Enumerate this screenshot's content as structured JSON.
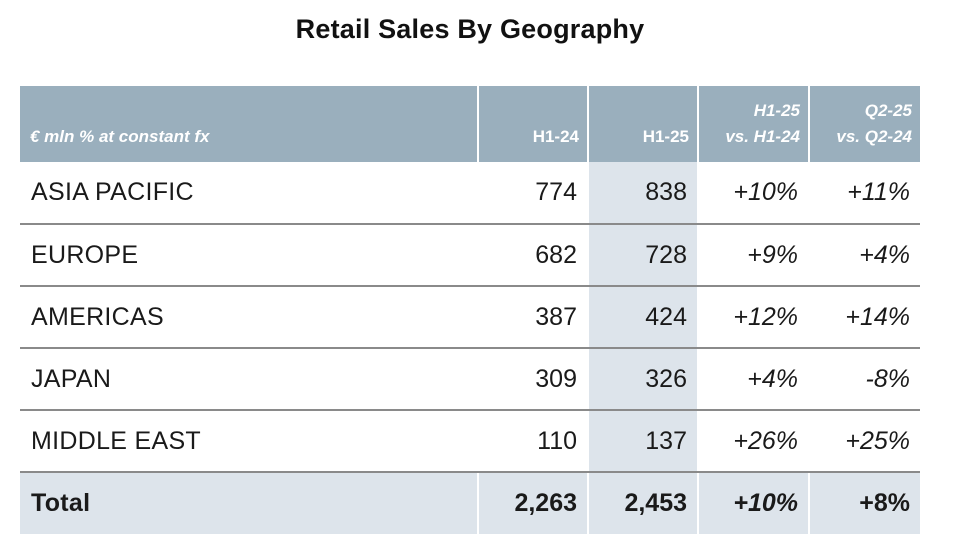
{
  "title": "Retail Sales By Geography",
  "table": {
    "headers": {
      "region": "€ mln % at constant fx",
      "h124": "H1-24",
      "h125": "H1-25",
      "chg1_line1": "H1-25",
      "chg1_line2": "vs. H1-24",
      "chg2_line1": "Q2-25",
      "chg2_line2": "vs. Q2-24"
    },
    "rows": [
      {
        "region": "ASIA PACIFIC",
        "h124": "774",
        "h125": "838",
        "chg1": "+10%",
        "chg2": "+11%"
      },
      {
        "region": "EUROPE",
        "h124": "682",
        "h125": "728",
        "chg1": "+9%",
        "chg2": "+4%"
      },
      {
        "region": "AMERICAS",
        "h124": "387",
        "h125": "424",
        "chg1": "+12%",
        "chg2": "+14%"
      },
      {
        "region": "JAPAN",
        "h124": "309",
        "h125": "326",
        "chg1": "+4%",
        "chg2": "-8%"
      },
      {
        "region": "MIDDLE EAST",
        "h124": "110",
        "h125": "137",
        "chg1": "+26%",
        "chg2": "+25%"
      }
    ],
    "total": {
      "region": "Total",
      "h124": "2,263",
      "h125": "2,453",
      "chg1": "+10%",
      "chg2": "+8%"
    }
  },
  "colors": {
    "header_bg": "#9aafbd",
    "shade_bg": "#dde4eb",
    "rule": "#8a8a8a"
  }
}
